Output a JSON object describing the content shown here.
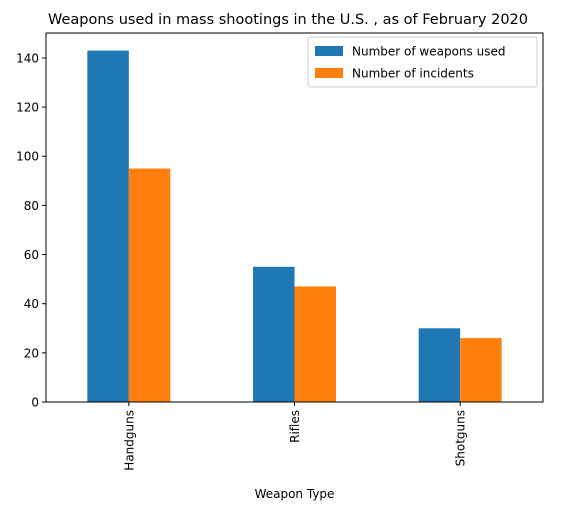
{
  "chart_data": {
    "type": "bar",
    "title": "Weapons used in mass shootings in the U.S. , as of February 2020",
    "xlabel": "Weapon Type",
    "ylabel": "",
    "categories": [
      "Handguns",
      "Rifles",
      "Shotguns"
    ],
    "series": [
      {
        "name": "Number of weapons used",
        "values": [
          143,
          55,
          30
        ],
        "color": "#1f77b4"
      },
      {
        "name": "Number of incidents",
        "values": [
          95,
          47,
          26
        ],
        "color": "#ff7f0e"
      }
    ],
    "ylim": [
      0,
      150.15
    ],
    "yticks": [
      0,
      20,
      40,
      60,
      80,
      100,
      120,
      140
    ],
    "grid": false,
    "legend_position": "top-right"
  }
}
